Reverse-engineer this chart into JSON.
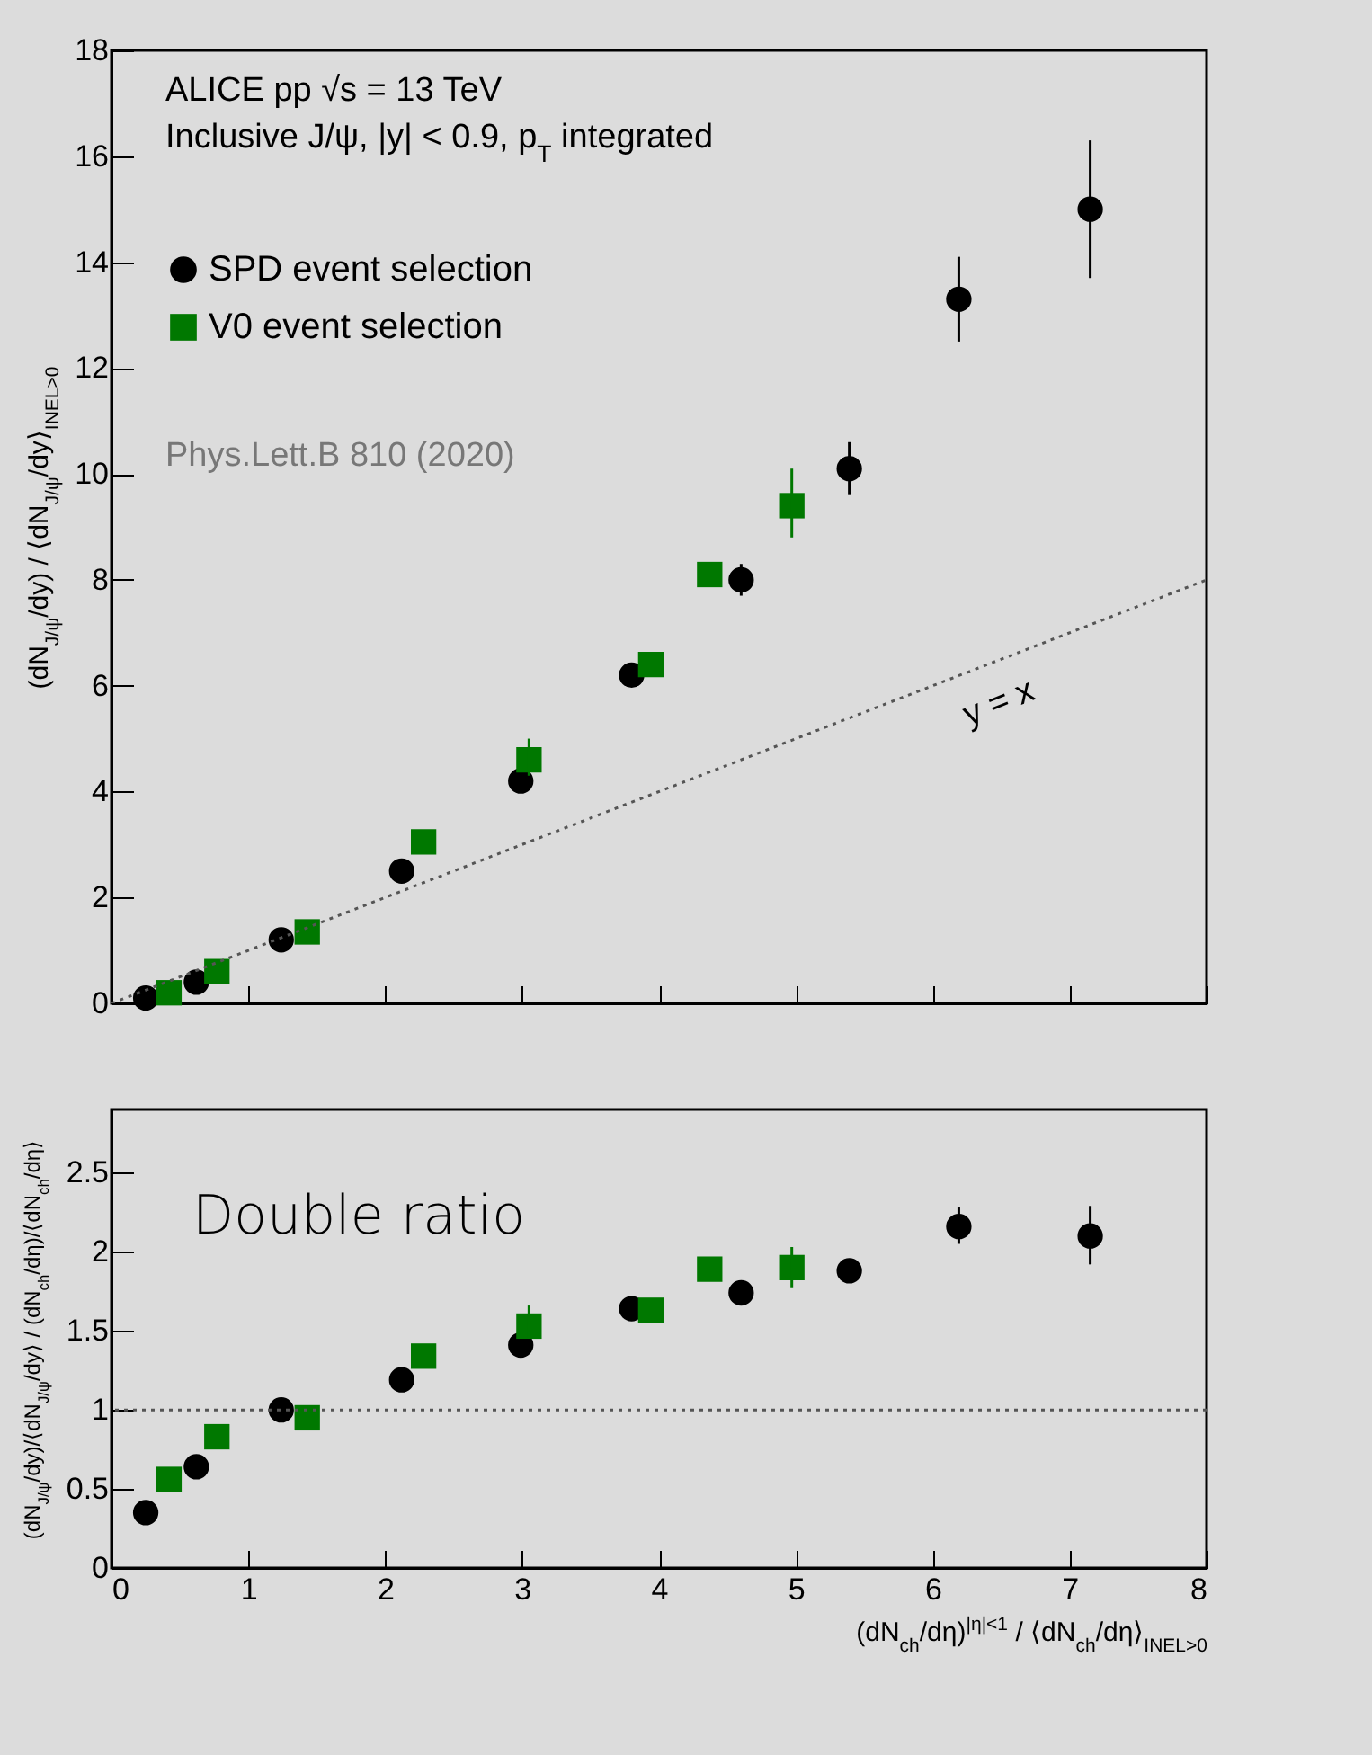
{
  "chart_data": [
    {
      "type": "scatter",
      "xlim": [
        0,
        8
      ],
      "xticks": [
        0,
        1,
        2,
        3,
        4,
        5,
        6,
        7,
        8
      ],
      "ylim": [
        0,
        18
      ],
      "yticks": [
        0,
        2,
        4,
        6,
        8,
        10,
        12,
        14,
        16,
        18
      ],
      "tick_labels": "y",
      "legend": "top left",
      "ylabel": "(dN$_{J/ψ}$/dy) / ⟨dN$_{J/ψ}$/dy⟩$_{INEL>0}$",
      "annotations": [
        "ALICE pp √s = 13 TeV",
        "Inclusive J/ψ, |y| < 0.9, p$_{T}$ integrated",
        "Phys.Lett.B 810 (2020)",
        {
          "text": "y = x",
          "x": 6.3,
          "y": 6.3
        }
      ],
      "series": [
        {
          "name": "SPD event selection",
          "color": "#000000",
          "marker": "circle",
          "x": [
            0.25,
            0.62,
            1.24,
            2.12,
            2.99,
            3.8,
            4.6,
            5.39,
            6.19,
            7.15
          ],
          "values": [
            0.1,
            0.4,
            1.2,
            2.5,
            4.2,
            6.2,
            8.0,
            10.1,
            13.3,
            15.0
          ],
          "errors": [
            null,
            null,
            null,
            null,
            null,
            null,
            [
              7.7,
              8.3
            ],
            [
              9.6,
              10.6
            ],
            [
              12.5,
              14.1
            ],
            [
              13.7,
              16.3
            ]
          ]
        },
        {
          "name": "V0 event selection",
          "color": "#007800",
          "marker": "square",
          "x": [
            0.42,
            0.77,
            1.43,
            2.28,
            3.05,
            3.94,
            4.37,
            4.97
          ],
          "values": [
            0.2,
            0.6,
            1.35,
            3.05,
            4.6,
            6.4,
            8.1,
            9.4
          ],
          "errors": [
            null,
            null,
            null,
            null,
            [
              4.3,
              5.0
            ],
            null,
            null,
            [
              8.8,
              10.1
            ]
          ]
        },
        {
          "type": "line",
          "color": "#555555",
          "line_style": "dotted",
          "x": [
            0,
            8
          ],
          "values": [
            0,
            8
          ]
        }
      ]
    },
    {
      "type": "scatter",
      "xlim": [
        0,
        8
      ],
      "xticks": [
        0,
        1,
        2,
        3,
        4,
        5,
        6,
        7,
        8
      ],
      "ylim": [
        0,
        2.9
      ],
      "yticks": [
        0,
        0.5,
        1,
        1.5,
        2,
        2.5
      ],
      "xlabel": "(dN$_{ch}$/dη)$^{|η|<1}$ / ⟨dN$_{ch}$/dη⟩$_{INEL>0}$",
      "ylabel": "(dN$_{J/ψ}$/dy)/⟨dN$_{J/ψ}$/dy⟩ / (dN$_{ch}$/dη)/⟨dN$_{ch}$/dη⟩",
      "annotations": [
        "Double ratio"
      ],
      "ref_lines": [
        {
          "axis": "y",
          "value": 1,
          "color": "#555555",
          "line_style": "dotted"
        }
      ],
      "series": [
        {
          "color": "#000000",
          "marker": "circle",
          "x": [
            0.25,
            0.62,
            1.24,
            2.12,
            2.99,
            3.8,
            4.6,
            5.39,
            6.19,
            7.15
          ],
          "values": [
            0.35,
            0.64,
            1.0,
            1.19,
            1.41,
            1.64,
            1.74,
            1.88,
            2.16,
            2.1
          ],
          "errors": [
            null,
            null,
            null,
            null,
            null,
            null,
            null,
            [
              1.82,
              1.94
            ],
            [
              2.05,
              2.28
            ],
            [
              1.92,
              2.29
            ]
          ]
        },
        {
          "color": "#007800",
          "marker": "square",
          "x": [
            0.42,
            0.77,
            1.43,
            2.28,
            3.05,
            3.94,
            4.37,
            4.97
          ],
          "values": [
            0.56,
            0.83,
            0.95,
            1.34,
            1.53,
            1.63,
            1.89,
            1.9
          ],
          "errors": [
            null,
            null,
            null,
            null,
            [
              1.45,
              1.66
            ],
            null,
            null,
            [
              1.77,
              2.03
            ]
          ]
        }
      ]
    }
  ]
}
